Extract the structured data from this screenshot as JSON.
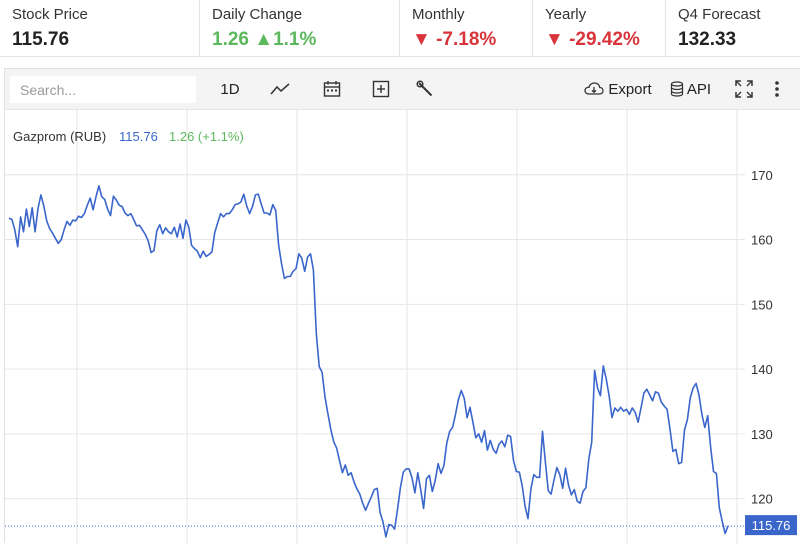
{
  "stats": [
    {
      "label": "Stock Price",
      "value": "115.76"
    },
    {
      "label": "Daily Change",
      "value": "1.26",
      "arrow": "▲",
      "pct": "1.1%"
    },
    {
      "label": "Monthly",
      "arrow": "▼",
      "value": "-7.18%"
    },
    {
      "label": "Yearly",
      "arrow": "▼",
      "value": "-29.42%"
    },
    {
      "label": "Q4 Forecast",
      "value": "132.33"
    }
  ],
  "toolbar": {
    "search_placeholder": "Search...",
    "interval": "1D",
    "export_label": "Export",
    "api_label": "API",
    "icons": [
      "line-chart-icon",
      "calendar-icon",
      "add-indicator-icon",
      "wrench-icon",
      "cloud-download-icon",
      "database-icon",
      "fullscreen-icon",
      "more-vertical-icon"
    ]
  },
  "legend": {
    "name": "Gazprom (RUB)",
    "price": "115.76",
    "change": "1.26 (+1.1%)"
  },
  "colors": {
    "line": "#3a66cc",
    "up": "#5cb85c",
    "down": "#d9343a",
    "grid": "#e6e6e6",
    "price_label_bg": "#3a66cc"
  },
  "chart_data": {
    "type": "line",
    "title": "",
    "xlabel": "",
    "ylabel": "",
    "ylim": [
      113,
      180
    ],
    "y_ticks": [
      120,
      130,
      140,
      150,
      160,
      170
    ],
    "grid": true,
    "last_price_label": "115.76",
    "series": [
      {
        "name": "Gazprom (RUB)",
        "values": [
          163.3,
          163.1,
          161.5,
          158.9,
          163.5,
          161.2,
          164.7,
          162.0,
          164.9,
          161.2,
          164.8,
          166.9,
          165.2,
          162.9,
          161.7,
          161.0,
          160.2,
          159.4,
          160.0,
          161.5,
          162.8,
          162.2,
          163.0,
          162.9,
          163.6,
          163.4,
          164.0,
          165.3,
          166.4,
          164.6,
          166.6,
          168.3,
          166.6,
          166.2,
          164.7,
          163.7,
          166.7,
          166.1,
          165.3,
          165.1,
          164.1,
          163.7,
          164.0,
          163.1,
          162.1,
          162.2,
          161.5,
          160.8,
          159.8,
          158.0,
          158.3,
          161.4,
          162.3,
          160.9,
          161.8,
          161.2,
          160.9,
          161.9,
          160.4,
          162.4,
          160.2,
          163.0,
          161.9,
          159.1,
          158.6,
          158.2,
          157.2,
          158.2,
          157.4,
          157.7,
          158.1,
          161.1,
          162.6,
          164.0,
          163.5,
          164.0,
          164.0,
          164.6,
          165.4,
          165.5,
          165.8,
          167.0,
          165.2,
          164.0,
          165.1,
          166.9,
          167.0,
          165.5,
          164.1,
          164.1,
          163.8,
          165.4,
          164.5,
          159.2,
          156.3,
          154.0,
          154.3,
          154.3,
          155.1,
          155.5,
          157.8,
          157.1,
          155.1,
          157.3,
          157.8,
          155.3,
          145.5,
          140.4,
          139.5,
          135.7,
          133.1,
          130.7,
          128.8,
          127.8,
          125.9,
          124.0,
          125.2,
          123.6,
          124.0,
          122.6,
          121.5,
          120.7,
          119.3,
          118.2,
          119.3,
          120.3,
          121.4,
          121.6,
          117.9,
          116.4,
          114.1,
          116.0,
          115.9,
          115.3,
          118.3,
          121.7,
          124.1,
          124.6,
          124.6,
          123.2,
          120.9,
          124.0,
          121.4,
          118.5,
          123.1,
          123.6,
          121.1,
          122.8,
          125.4,
          123.9,
          125.1,
          128.6,
          130.4,
          131.0,
          133.0,
          135.3,
          136.7,
          135.5,
          132.5,
          134.1,
          131.8,
          129.4,
          130.0,
          128.7,
          130.5,
          127.5,
          129.0,
          127.6,
          127.0,
          128.4,
          128.9,
          128.0,
          129.8,
          129.6,
          125.9,
          124.2,
          124.1,
          122.0,
          118.8,
          116.9,
          121.5,
          123.7,
          123.3,
          123.3,
          130.4,
          125.6,
          121.2,
          120.7,
          122.9,
          124.8,
          123.7,
          121.6,
          124.7,
          122.1,
          120.6,
          121.4,
          119.6,
          119.3,
          121.1,
          121.7,
          126.1,
          128.7,
          139.8,
          137.1,
          135.9,
          140.5,
          138.5,
          135.9,
          132.5,
          134.0,
          133.5,
          134.1,
          133.5,
          133.8,
          133.0,
          134.0,
          133.3,
          131.8,
          134.0,
          136.3,
          136.9,
          136.0,
          135.1,
          136.5,
          136.3,
          134.9,
          134.3,
          133.8,
          130.7,
          127.3,
          127.6,
          125.4,
          125.6,
          130.6,
          132.2,
          135.6,
          137.1,
          137.8,
          136.0,
          133.0,
          131.0,
          132.8,
          128.0,
          124.2,
          123.9,
          118.6,
          116.5,
          114.6,
          115.8
        ]
      }
    ]
  }
}
